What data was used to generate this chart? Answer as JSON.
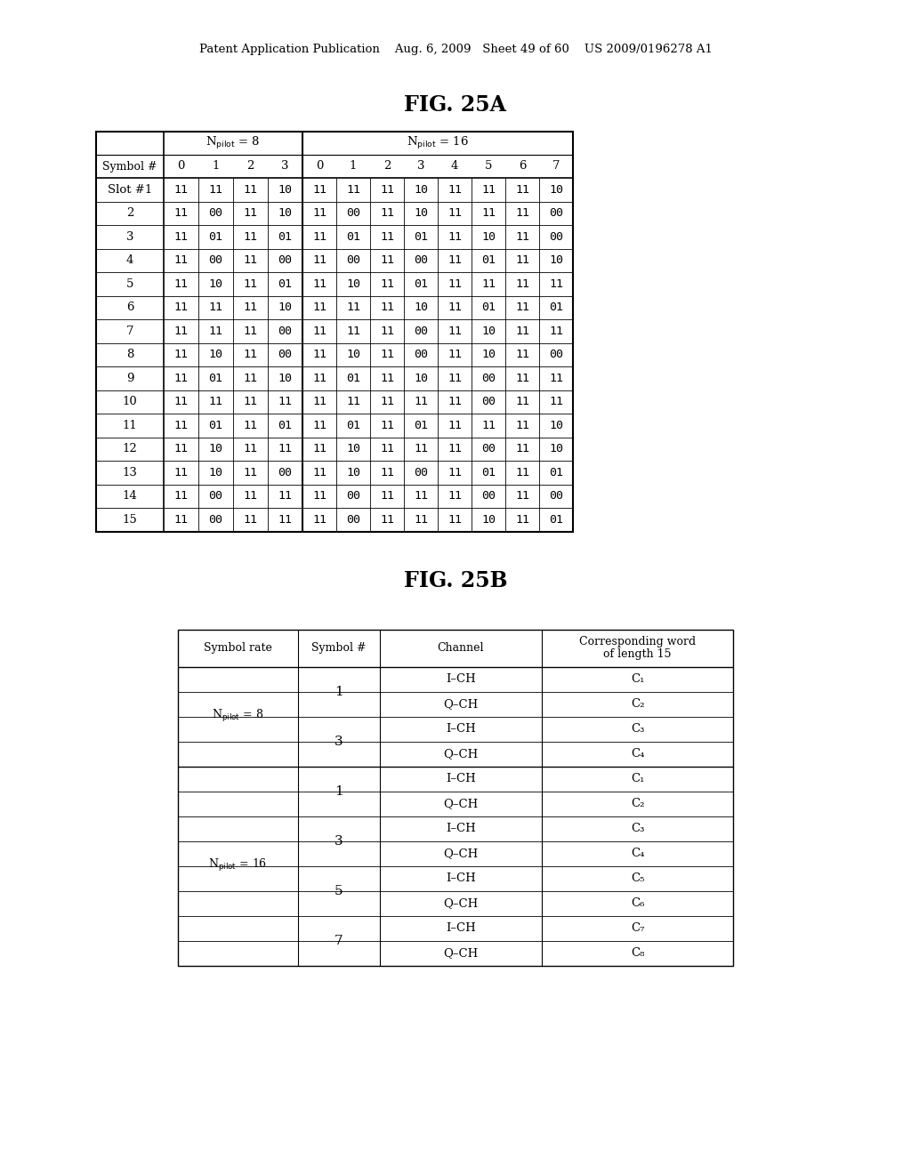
{
  "header_text": "Patent Application Publication    Aug. 6, 2009   Sheet 49 of 60    US 2009/0196278 A1",
  "fig25a_title": "FIG. 25A",
  "fig25b_title": "FIG. 25B",
  "fig25a": {
    "col_header_8": [
      "0",
      "1",
      "2",
      "3"
    ],
    "col_header_16": [
      "0",
      "1",
      "2",
      "3",
      "4",
      "5",
      "6",
      "7"
    ],
    "row_labels": [
      "Slot #1",
      "2",
      "3",
      "4",
      "5",
      "6",
      "7",
      "8",
      "9",
      "10",
      "11",
      "12",
      "13",
      "14",
      "15"
    ],
    "data_8": [
      [
        "11",
        "11",
        "11",
        "10"
      ],
      [
        "11",
        "00",
        "11",
        "10"
      ],
      [
        "11",
        "01",
        "11",
        "01"
      ],
      [
        "11",
        "00",
        "11",
        "00"
      ],
      [
        "11",
        "10",
        "11",
        "01"
      ],
      [
        "11",
        "11",
        "11",
        "10"
      ],
      [
        "11",
        "11",
        "11",
        "00"
      ],
      [
        "11",
        "10",
        "11",
        "00"
      ],
      [
        "11",
        "01",
        "11",
        "10"
      ],
      [
        "11",
        "11",
        "11",
        "11"
      ],
      [
        "11",
        "01",
        "11",
        "01"
      ],
      [
        "11",
        "10",
        "11",
        "11"
      ],
      [
        "11",
        "10",
        "11",
        "00"
      ],
      [
        "11",
        "00",
        "11",
        "11"
      ],
      [
        "11",
        "00",
        "11",
        "11"
      ]
    ],
    "data_16": [
      [
        "11",
        "11",
        "11",
        "10",
        "11",
        "11",
        "11",
        "10"
      ],
      [
        "11",
        "00",
        "11",
        "10",
        "11",
        "11",
        "11",
        "00"
      ],
      [
        "11",
        "01",
        "11",
        "01",
        "11",
        "10",
        "11",
        "00"
      ],
      [
        "11",
        "00",
        "11",
        "00",
        "11",
        "01",
        "11",
        "10"
      ],
      [
        "11",
        "10",
        "11",
        "01",
        "11",
        "11",
        "11",
        "11"
      ],
      [
        "11",
        "11",
        "11",
        "10",
        "11",
        "01",
        "11",
        "01"
      ],
      [
        "11",
        "11",
        "11",
        "00",
        "11",
        "10",
        "11",
        "11"
      ],
      [
        "11",
        "10",
        "11",
        "00",
        "11",
        "10",
        "11",
        "00"
      ],
      [
        "11",
        "01",
        "11",
        "10",
        "11",
        "00",
        "11",
        "11"
      ],
      [
        "11",
        "11",
        "11",
        "11",
        "11",
        "00",
        "11",
        "11"
      ],
      [
        "11",
        "01",
        "11",
        "01",
        "11",
        "11",
        "11",
        "10"
      ],
      [
        "11",
        "10",
        "11",
        "11",
        "11",
        "00",
        "11",
        "10"
      ],
      [
        "11",
        "10",
        "11",
        "00",
        "11",
        "01",
        "11",
        "01"
      ],
      [
        "11",
        "00",
        "11",
        "11",
        "11",
        "00",
        "11",
        "00"
      ],
      [
        "11",
        "00",
        "11",
        "11",
        "11",
        "10",
        "11",
        "01"
      ]
    ]
  },
  "fig25b": {
    "col_headers": [
      "Symbol rate",
      "Symbol #",
      "Channel",
      "Corresponding word\nof length 15"
    ],
    "symbol_numbers_8": [
      "1",
      "3"
    ],
    "symbol_numbers_16": [
      "1",
      "3",
      "5",
      "7"
    ],
    "channels_8": [
      "I–CH",
      "Q–CH",
      "I–CH",
      "Q–CH"
    ],
    "channels_16": [
      "I–CH",
      "Q–CH",
      "I–CH",
      "Q–CH",
      "I–CH",
      "Q–CH",
      "I–CH",
      "Q–CH"
    ],
    "words_8": [
      "C₁",
      "C₂",
      "C₃",
      "C₄"
    ],
    "words_16": [
      "C₁",
      "C₂",
      "C₃",
      "C₄",
      "C₅",
      "C₆",
      "C₇",
      "C₈"
    ]
  }
}
